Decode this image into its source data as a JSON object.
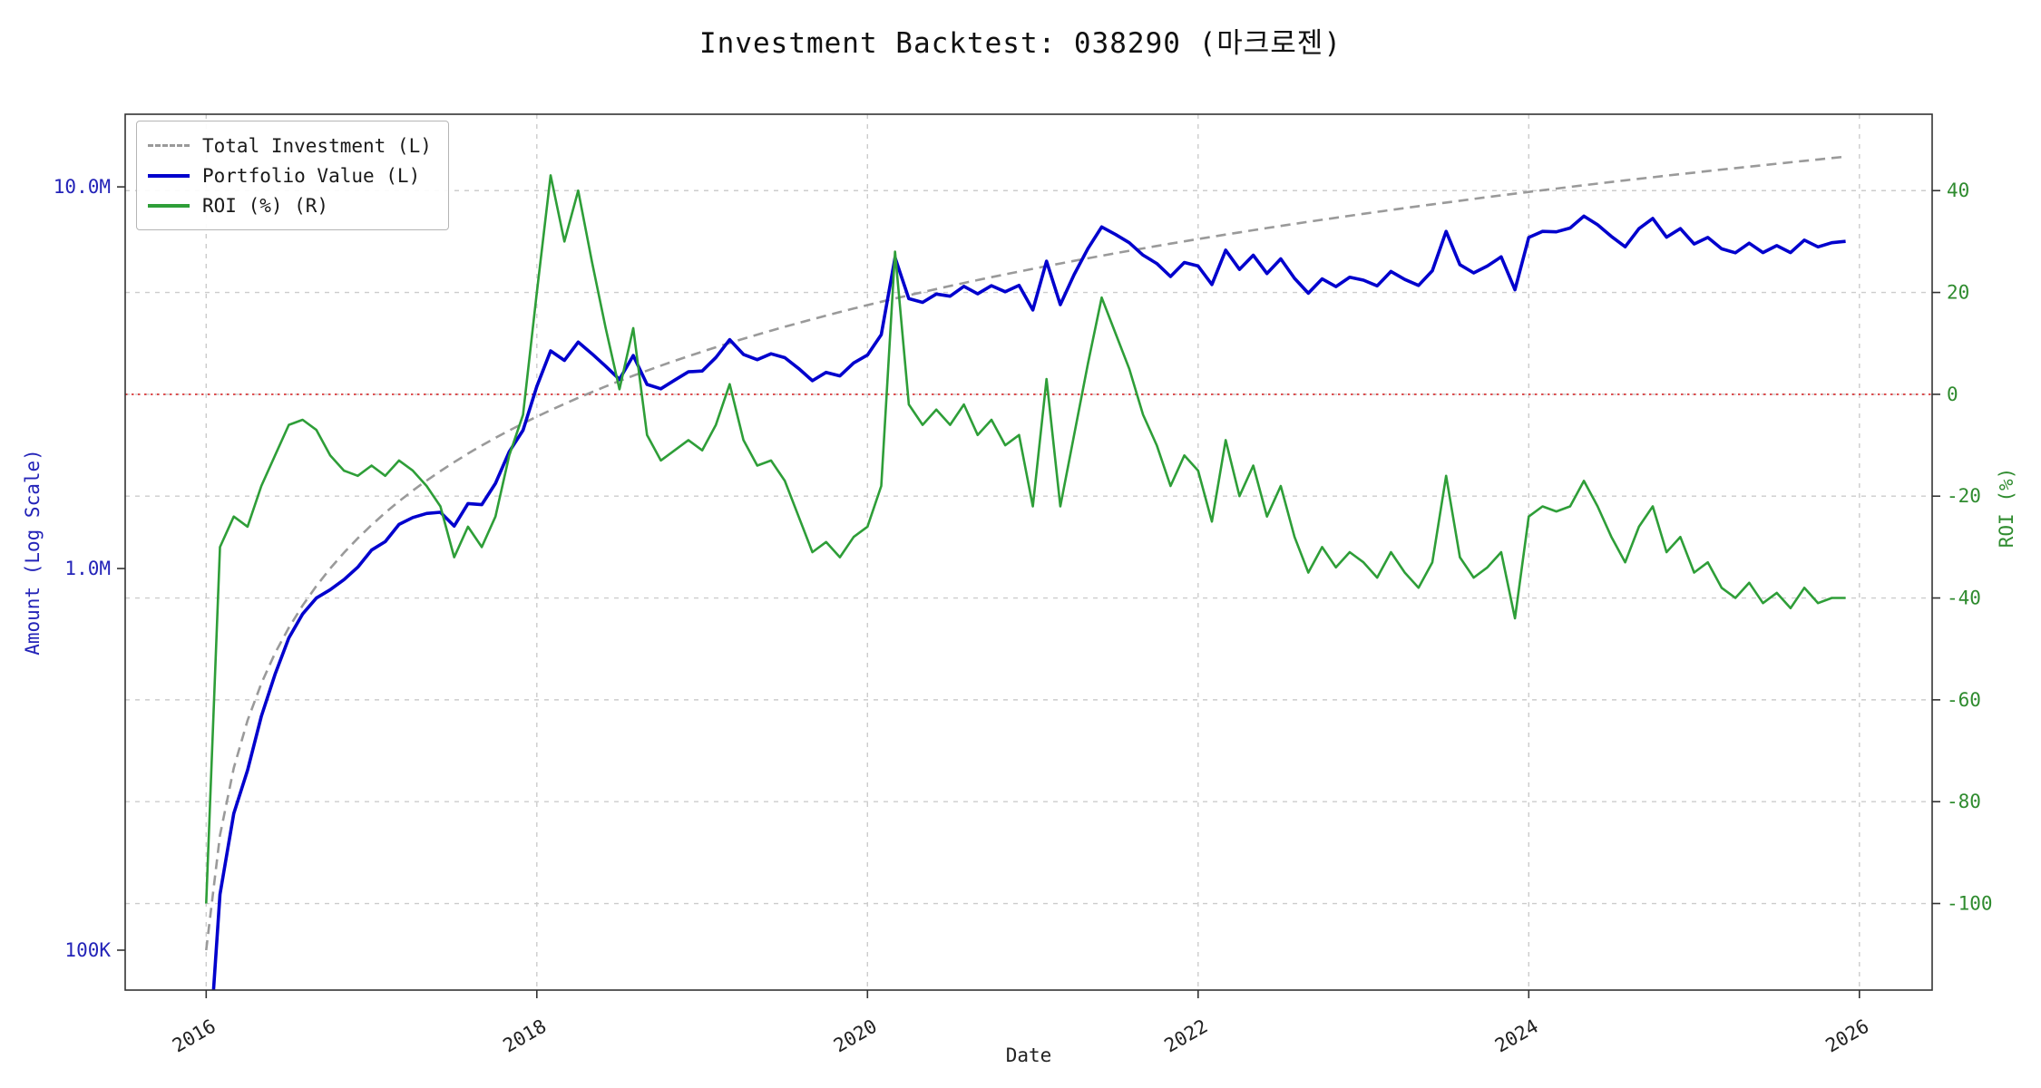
{
  "chart_data": {
    "type": "line",
    "title": "Investment Backtest: 038290 (마크로젠)",
    "xlabel": "Date",
    "ylabel_left": "Amount (Log Scale)",
    "ylabel_right": "ROI (%)",
    "x_start_year": 2016.0,
    "points_per_year": 12,
    "x_ticks": [
      2016,
      2018,
      2020,
      2022,
      2024,
      2026
    ],
    "x_range": [
      2015.51,
      2026.44
    ],
    "left_axis": {
      "scale": "log",
      "range": [
        78600,
        15500000
      ],
      "ticks": [
        {
          "value": 10000000,
          "label": "10.0M"
        },
        {
          "value": 1000000,
          "label": "1.0M"
        },
        {
          "value": 100000,
          "label": "100K"
        }
      ],
      "color": "#2323b8"
    },
    "right_axis": {
      "scale": "linear",
      "range": [
        -117,
        55
      ],
      "ticks": [
        40,
        20,
        0,
        -20,
        -40,
        -60,
        -80,
        -100
      ],
      "color": "#2e8b2e"
    },
    "zero_roi_line": {
      "value": 0,
      "color": "#d62728"
    },
    "grid": true,
    "legend_position": "upper-left",
    "monthly_contribution": 100000,
    "series": [
      {
        "name": "Total Investment (L)",
        "axis": "left",
        "color": "#9a9a9a",
        "dash": "dashed",
        "width": 2.6,
        "derivation": "cumulative: monthly_contribution * (i+1)"
      },
      {
        "name": "Portfolio Value (L)",
        "axis": "left",
        "color": "#0000cd",
        "dash": "solid",
        "width": 3.6,
        "derivation": "total_investment * (1 + roi_percent/100)"
      },
      {
        "name": "ROI (%) (R)",
        "axis": "right",
        "color": "#2e9e38",
        "dash": "solid",
        "width": 2.6,
        "derivation": "roi_percent"
      }
    ],
    "roi_percent": [
      -100,
      -30,
      -24,
      -26,
      -18,
      -12,
      -6,
      -5,
      -7,
      -12,
      -15,
      -16,
      -14,
      -16,
      -13,
      -15,
      -18,
      -22,
      -32,
      -26,
      -30,
      -24,
      -12,
      -4,
      20,
      43,
      30,
      40,
      26,
      13,
      1,
      13,
      -8,
      -13,
      -11,
      -9,
      -11,
      -6,
      2,
      -9,
      -14,
      -13,
      -17,
      -24,
      -31,
      -29,
      -32,
      -28,
      -26,
      -18,
      28,
      -2,
      -6,
      -3,
      -6,
      -2,
      -8,
      -5,
      -10,
      -8,
      -22,
      3,
      -22,
      -8,
      6,
      19,
      12,
      5,
      -4,
      -10,
      -18,
      -12,
      -15,
      -25,
      -9,
      -20,
      -14,
      -24,
      -18,
      -28,
      -35,
      -30,
      -34,
      -31,
      -33,
      -36,
      -31,
      -35,
      -38,
      -33,
      -16,
      -32,
      -36,
      -34,
      -31,
      -44,
      -24,
      -22,
      -23,
      -22,
      -17,
      -22,
      -28,
      -33,
      -26,
      -22,
      -31,
      -28,
      -35,
      -33,
      -38,
      -40,
      -37,
      -41,
      -39,
      -42,
      -38,
      -41,
      -40,
      -40
    ]
  }
}
